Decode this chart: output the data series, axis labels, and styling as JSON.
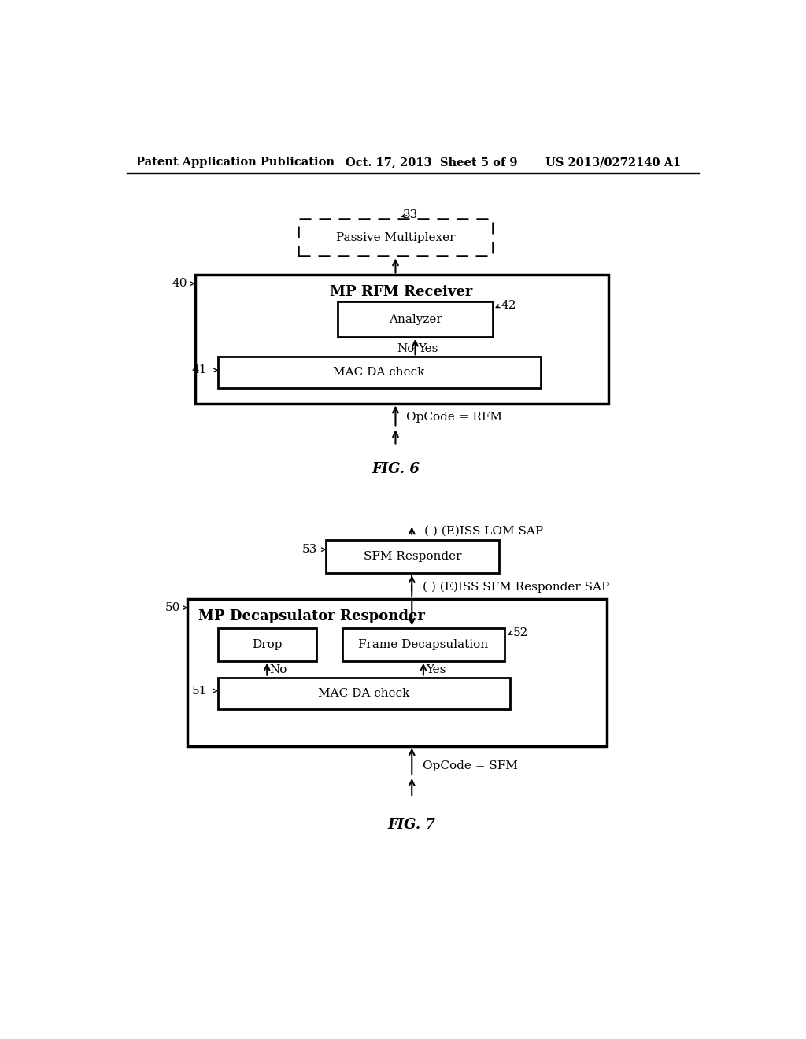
{
  "bg_color": "#ffffff",
  "header_left": "Patent Application Publication",
  "header_center": "Oct. 17, 2013  Sheet 5 of 9",
  "header_right": "US 2013/0272140 A1",
  "fig6_label": "FIG. 6",
  "fig7_label": "FIG. 7",
  "fig6": {
    "outer_box_label": "40",
    "outer_box_title": "MP RFM Receiver",
    "passive_mux_label": "33",
    "passive_mux_text": "Passive Multiplexer",
    "analyzer_label": "42",
    "analyzer_text": "Analyzer",
    "mac_label": "41",
    "mac_text": "MAC DA check",
    "no_text": "No",
    "yes_text": "Yes",
    "opcode_text": "OpCode = RFM"
  },
  "fig7": {
    "outer_box_label": "50",
    "outer_box_title": "MP Decapsulator Responder",
    "sfm_responder_label": "53",
    "sfm_responder_text": "SFM Responder",
    "frame_decap_label": "52",
    "frame_decap_text": "Frame Decapsulation",
    "drop_text": "Drop",
    "mac_label": "51",
    "mac_text": "MAC DA check",
    "no_text": "No",
    "yes_text": "Yes",
    "opcode_text": "OpCode = SFM",
    "lom_sap_text": "( ) (E)ISS LOM SAP",
    "sfm_sap_text": "( ) (E)ISS SFM Responder SAP"
  }
}
